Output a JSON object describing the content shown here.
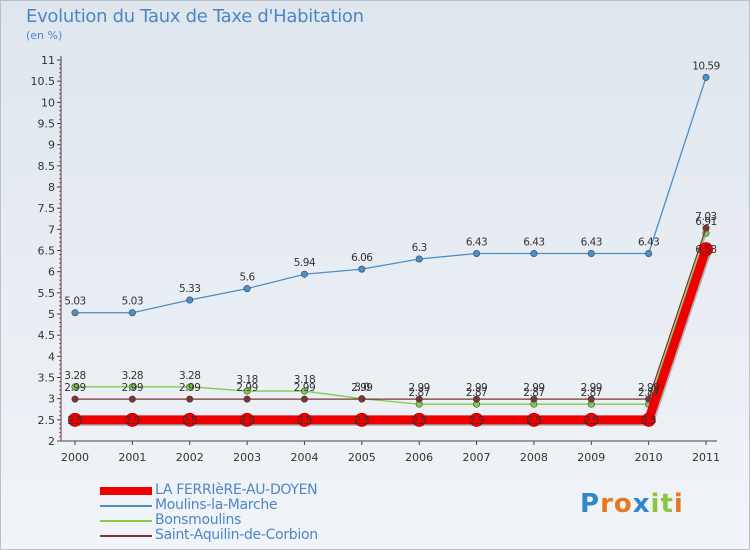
{
  "title": "Evolution du Taux de Taxe d'Habitation",
  "subtitle": "(en %)",
  "logo": {
    "letters": [
      "P",
      "r",
      "o",
      "x",
      "i",
      "t",
      "i"
    ],
    "colors": [
      "#2f88c8",
      "#e87722",
      "#e87722",
      "#2f88c8",
      "#8cc63f",
      "#8cc63f",
      "#e87722"
    ]
  },
  "chart_data": {
    "type": "line",
    "x": [
      "2000",
      "2001",
      "2002",
      "2003",
      "2004",
      "2005",
      "2006",
      "2007",
      "2008",
      "2009",
      "2010",
      "2011"
    ],
    "ylim": [
      2,
      11
    ],
    "yticks": [
      "2",
      "2.5",
      "3",
      "3.5",
      "4",
      "4.5",
      "5",
      "5.5",
      "6",
      "6.5",
      "7",
      "7.5",
      "8",
      "8.5",
      "9",
      "9.5",
      "10",
      "10.5",
      "11"
    ],
    "grid": false,
    "legend_position": "bottom-left",
    "series": [
      {
        "name": "LA FERRIèRE-AU-DOYEN",
        "color": "#ee0000",
        "values": [
          2.5,
          2.5,
          2.5,
          2.5,
          2.5,
          2.5,
          2.5,
          2.5,
          2.5,
          2.5,
          2.5,
          6.53
        ],
        "labels": [
          "2.5",
          "2.5",
          "2.5",
          "2.5",
          "2.5",
          "2.5",
          "2.5",
          "2.5",
          "2.5",
          "2.5",
          "2.5",
          "6.53"
        ]
      },
      {
        "name": "Moulins-la-Marche",
        "color": "#4a8fca",
        "values": [
          5.03,
          5.03,
          5.33,
          5.6,
          5.94,
          6.06,
          6.3,
          6.43,
          6.43,
          6.43,
          6.43,
          10.59
        ],
        "labels": [
          "5.03",
          "5.03",
          "5.33",
          "5.6",
          "5.94",
          "6.06",
          "6.3",
          "6.43",
          "6.43",
          "6.43",
          "6.43",
          "10.59"
        ]
      },
      {
        "name": "Bonsmoulins",
        "color": "#7fcc4c",
        "values": [
          3.28,
          3.28,
          3.28,
          3.18,
          3.18,
          3.0,
          2.87,
          2.87,
          2.87,
          2.87,
          2.87,
          6.91
        ],
        "labels": [
          "3.28",
          "3.28",
          "3.28",
          "3.18",
          "3.18",
          "3.0",
          "2.87",
          "2.87",
          "2.87",
          "2.87",
          "2.87",
          "6.91"
        ]
      },
      {
        "name": "Saint-Aquilin-de-Corbion",
        "color": "#7a3535",
        "values": [
          2.99,
          2.99,
          2.99,
          2.99,
          2.99,
          2.99,
          2.99,
          2.99,
          2.99,
          2.99,
          2.99,
          7.03
        ],
        "labels": [
          "2.99",
          "2.99",
          "2.99",
          "2.99",
          "2.99",
          "2.99",
          "2.99",
          "2.99",
          "2.99",
          "2.99",
          "2.99",
          "7.03"
        ]
      }
    ]
  }
}
